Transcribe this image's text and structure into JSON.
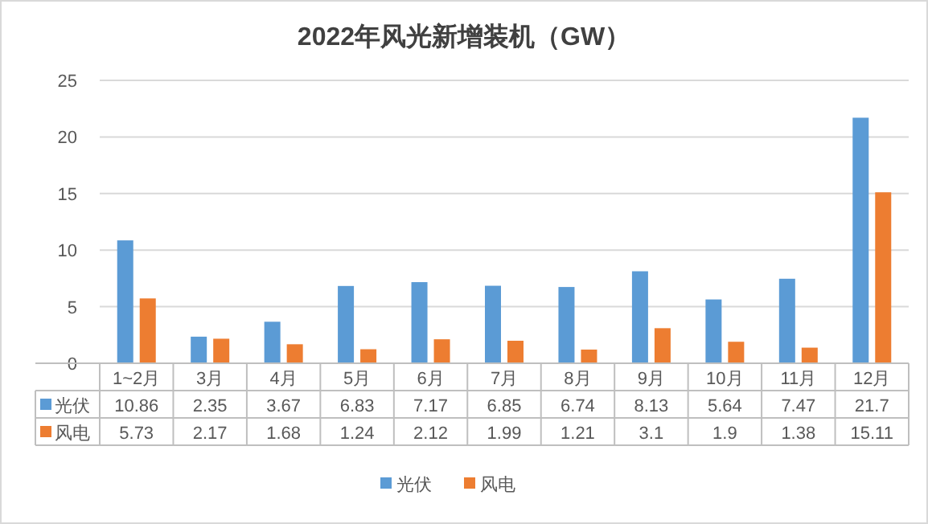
{
  "chart_data": {
    "type": "bar",
    "title": "2022年风光新增装机（GW）",
    "categories": [
      "1~2月",
      "3月",
      "4月",
      "5月",
      "6月",
      "7月",
      "8月",
      "9月",
      "10月",
      "11月",
      "12月"
    ],
    "series": [
      {
        "name": "光伏",
        "color": "#5b9bd5",
        "values": [
          10.86,
          2.35,
          3.67,
          6.83,
          7.17,
          6.85,
          6.74,
          8.13,
          5.64,
          7.47,
          21.7
        ]
      },
      {
        "name": "风电",
        "color": "#ed7d31",
        "values": [
          5.73,
          2.17,
          1.68,
          1.24,
          2.12,
          1.99,
          1.21,
          3.1,
          1.9,
          1.38,
          15.11
        ]
      }
    ],
    "ylim": [
      0,
      25
    ],
    "yticks": [
      0,
      5,
      10,
      15,
      20,
      25
    ],
    "grid": "y",
    "legend": "bottom",
    "data_labels": true
  }
}
